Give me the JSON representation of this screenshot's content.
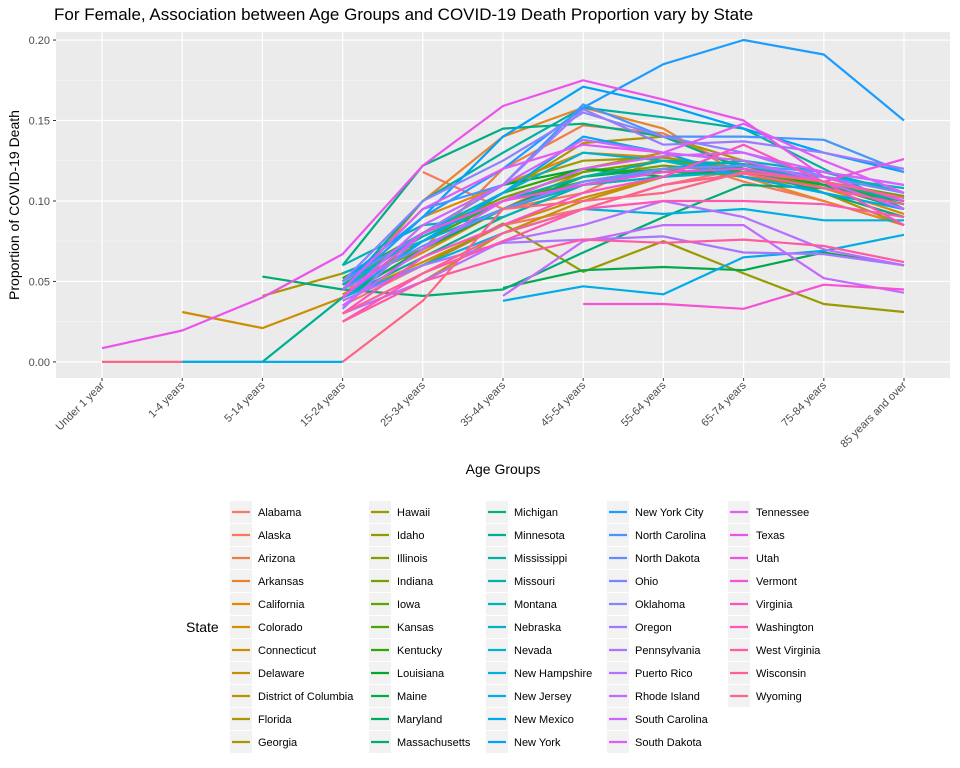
{
  "chart_data": {
    "type": "line",
    "title": "For Female, Association between Age Groups and COVID-19 Death Proportion vary by State",
    "xlabel": "Age Groups",
    "ylabel": "Proportion of COVID-19 Death",
    "categories": [
      "Under 1 year",
      "1-4 years",
      "5-14 years",
      "15-24 years",
      "25-34 years",
      "35-44 years",
      "45-54 years",
      "55-64 years",
      "65-74 years",
      "75-84 years",
      "85 years and over"
    ],
    "ylim": [
      -0.01,
      0.205
    ],
    "yticks": [
      0.0,
      0.05,
      0.1,
      0.15,
      0.2
    ],
    "ytick_labels": [
      "0.00",
      "0.05",
      "0.10",
      "0.15",
      "0.20"
    ],
    "grid": true,
    "legend": {
      "title": "State",
      "position": "bottom"
    },
    "series": [
      {
        "name": "Alabama",
        "color": "#F8766D",
        "values": [
          null,
          null,
          null,
          0.035,
          0.06,
          0.085,
          0.095,
          0.11,
          0.12,
          0.11,
          0.095
        ]
      },
      {
        "name": "Alaska",
        "color": "#F47A5B",
        "values": [
          null,
          null,
          null,
          null,
          0.118,
          0.095,
          0.105,
          0.128,
          0.112,
          0.1,
          0.085
        ]
      },
      {
        "name": "Arizona",
        "color": "#EE7F44",
        "values": [
          null,
          null,
          null,
          0.04,
          0.07,
          0.12,
          0.147,
          0.142,
          0.12,
          0.105,
          0.09
        ]
      },
      {
        "name": "Arkansas",
        "color": "#E8842C",
        "values": [
          null,
          null,
          null,
          0.04,
          0.1,
          0.14,
          0.158,
          0.145,
          0.115,
          0.1,
          0.085
        ]
      },
      {
        "name": "California",
        "color": "#E18A00",
        "values": [
          null,
          null,
          null,
          0.045,
          0.09,
          0.11,
          0.13,
          0.127,
          0.12,
          0.108,
          0.092
        ]
      },
      {
        "name": "Colorado",
        "color": "#D78F00",
        "values": [
          null,
          null,
          null,
          0.042,
          0.068,
          0.095,
          0.118,
          0.125,
          0.115,
          0.11,
          0.1
        ]
      },
      {
        "name": "Connecticut",
        "color": "#CC8E00",
        "values": [
          null,
          0.031,
          0.021,
          0.04,
          0.062,
          0.085,
          0.102,
          0.115,
          0.12,
          0.11,
          0.1
        ]
      },
      {
        "name": "Delaware",
        "color": "#C29000",
        "values": [
          null,
          null,
          null,
          null,
          0.05,
          0.08,
          0.1,
          0.115,
          0.12,
          0.112,
          0.102
        ]
      },
      {
        "name": "District of Columbia",
        "color": "#B69300",
        "values": [
          null,
          null,
          null,
          0.045,
          0.08,
          0.1,
          0.12,
          0.13,
          0.125,
          0.11,
          0.095
        ]
      },
      {
        "name": "Florida",
        "color": "#AB9600",
        "values": [
          null,
          null,
          0.041,
          0.055,
          0.075,
          0.105,
          0.136,
          0.14,
          0.125,
          0.105,
          0.085
        ]
      },
      {
        "name": "Georgia",
        "color": "#A39800",
        "values": [
          null,
          null,
          null,
          0.048,
          0.08,
          0.11,
          0.125,
          0.127,
          0.12,
          0.11,
          0.095
        ]
      },
      {
        "name": "Hawaii",
        "color": "#999900",
        "values": [
          null,
          null,
          null,
          null,
          0.06,
          0.086,
          0.056,
          0.075,
          0.055,
          0.036,
          0.031
        ]
      },
      {
        "name": "Idaho",
        "color": "#8E9B00",
        "values": [
          null,
          null,
          null,
          0.04,
          0.07,
          0.095,
          0.11,
          0.12,
          0.115,
          0.108,
          0.098
        ]
      },
      {
        "name": "Illinois",
        "color": "#819D00",
        "values": [
          null,
          null,
          null,
          0.045,
          0.075,
          0.1,
          0.115,
          0.122,
          0.118,
          0.11,
          0.1
        ]
      },
      {
        "name": "Indiana",
        "color": "#74A000",
        "values": [
          null,
          null,
          null,
          0.05,
          0.08,
          0.102,
          0.118,
          0.125,
          0.12,
          0.112,
          0.102
        ]
      },
      {
        "name": "Iowa",
        "color": "#62A300",
        "values": [
          null,
          null,
          null,
          0.048,
          0.07,
          0.095,
          0.11,
          0.118,
          0.12,
          0.112,
          0.103
        ]
      },
      {
        "name": "Kansas",
        "color": "#4DA500",
        "values": [
          null,
          null,
          null,
          0.055,
          0.075,
          0.1,
          0.112,
          0.12,
          0.122,
          0.11,
          0.1
        ]
      },
      {
        "name": "Kentucky",
        "color": "#2EA700",
        "values": [
          null,
          null,
          null,
          0.052,
          0.08,
          0.105,
          0.12,
          0.118,
          0.118,
          0.108,
          0.098
        ]
      },
      {
        "name": "Louisiana",
        "color": "#00A82C",
        "values": [
          null,
          null,
          null,
          0.05,
          0.08,
          0.11,
          0.12,
          0.115,
          0.12,
          0.11,
          0.098
        ]
      },
      {
        "name": "Maine",
        "color": "#00AA4B",
        "values": [
          null,
          null,
          null,
          null,
          null,
          0.046,
          0.057,
          0.059,
          0.057,
          0.068,
          0.06
        ]
      },
      {
        "name": "Maryland",
        "color": "#00AB60",
        "values": [
          null,
          null,
          null,
          0.04,
          0.07,
          0.095,
          0.115,
          0.12,
          0.125,
          0.11,
          0.095
        ]
      },
      {
        "name": "Massachusetts",
        "color": "#00AC73",
        "values": [
          null,
          null,
          0.053,
          0.045,
          0.041,
          0.045,
          0.068,
          0.09,
          0.11,
          0.108,
          0.1
        ]
      },
      {
        "name": "Michigan",
        "color": "#00AE82",
        "values": [
          null,
          null,
          null,
          0.06,
          0.122,
          0.145,
          0.148,
          0.14,
          0.12,
          0.105,
          0.09
        ]
      },
      {
        "name": "Minnesota",
        "color": "#00AF91",
        "values": [
          null,
          0.0,
          0.0,
          0.04,
          0.065,
          0.09,
          0.11,
          0.115,
          0.122,
          0.112,
          0.102
        ]
      },
      {
        "name": "Mississippi",
        "color": "#00B09E",
        "values": [
          null,
          null,
          null,
          0.045,
          0.1,
          0.13,
          0.158,
          0.152,
          0.145,
          0.12,
          0.095
        ]
      },
      {
        "name": "Missouri",
        "color": "#00B1AB",
        "values": [
          null,
          null,
          null,
          0.048,
          0.078,
          0.1,
          0.115,
          0.125,
          0.123,
          0.112,
          0.1
        ]
      },
      {
        "name": "Montana",
        "color": "#00B2B8",
        "values": [
          null,
          null,
          null,
          0.06,
          0.085,
          0.09,
          0.11,
          0.12,
          0.125,
          0.118,
          0.105
        ]
      },
      {
        "name": "Nebraska",
        "color": "#00B3C5",
        "values": [
          null,
          null,
          null,
          0.055,
          0.075,
          0.095,
          0.11,
          0.115,
          0.118,
          0.115,
          0.108
        ]
      },
      {
        "name": "Nevada",
        "color": "#00B2D1",
        "values": [
          null,
          null,
          null,
          0.045,
          0.08,
          0.105,
          0.13,
          0.125,
          0.115,
          0.105,
          0.095
        ]
      },
      {
        "name": "New Hampshire",
        "color": "#00B0DD",
        "values": [
          null,
          null,
          null,
          0.04,
          0.06,
          0.08,
          0.095,
          0.092,
          0.095,
          0.088,
          0.088
        ]
      },
      {
        "name": "New Jersey",
        "color": "#00ACE8",
        "values": [
          null,
          0.0,
          0.0,
          0.0,
          null,
          0.038,
          0.047,
          0.042,
          0.065,
          0.069,
          0.079
        ]
      },
      {
        "name": "New Mexico",
        "color": "#00A8F2",
        "values": [
          null,
          null,
          null,
          0.04,
          0.075,
          0.105,
          0.14,
          0.13,
          0.115,
          0.105,
          0.095
        ]
      },
      {
        "name": "New York",
        "color": "#00A1FA",
        "values": [
          null,
          null,
          null,
          0.05,
          0.09,
          0.14,
          0.171,
          0.16,
          0.145,
          0.13,
          0.118
        ]
      },
      {
        "name": "New York City",
        "color": "#1C9CFF",
        "values": [
          null,
          null,
          null,
          0.045,
          0.09,
          0.12,
          0.158,
          0.185,
          0.2,
          0.191,
          0.15
        ]
      },
      {
        "name": "North Carolina",
        "color": "#4595FF",
        "values": [
          null,
          null,
          null,
          0.045,
          0.095,
          0.11,
          0.16,
          0.14,
          0.14,
          0.138,
          0.118
        ]
      },
      {
        "name": "North Dakota",
        "color": "#618EFF",
        "values": [
          null,
          null,
          null,
          0.05,
          0.08,
          0.1,
          0.11,
          0.12,
          0.122,
          0.118,
          0.11
        ]
      },
      {
        "name": "Ohio",
        "color": "#7788FF",
        "values": [
          null,
          null,
          null,
          0.045,
          0.072,
          0.095,
          0.112,
          0.12,
          0.122,
          0.115,
          0.105
        ]
      },
      {
        "name": "Oklahoma",
        "color": "#8A82FF",
        "values": [
          null,
          null,
          null,
          0.05,
          0.1,
          0.125,
          0.155,
          0.14,
          0.13,
          0.115,
          0.1
        ]
      },
      {
        "name": "Oregon",
        "color": "#9A7BFF",
        "values": [
          null,
          null,
          null,
          0.033,
          0.08,
          0.11,
          0.157,
          0.135,
          0.137,
          0.13,
          0.12
        ]
      },
      {
        "name": "Pennsylvania",
        "color": "#A975FF",
        "values": [
          null,
          null,
          null,
          0.038,
          0.06,
          0.074,
          0.076,
          0.078,
          0.068,
          0.067,
          0.06
        ]
      },
      {
        "name": "Puerto Rico",
        "color": "#B66FFF",
        "values": [
          null,
          null,
          null,
          0.03,
          0.05,
          0.075,
          0.085,
          0.1,
          0.09,
          0.07,
          0.06
        ]
      },
      {
        "name": "Rhode Island",
        "color": "#C26AFF",
        "values": [
          null,
          null,
          null,
          null,
          null,
          0.041,
          0.075,
          0.085,
          0.085,
          0.052,
          0.043
        ]
      },
      {
        "name": "South Carolina",
        "color": "#CE64FF",
        "values": [
          null,
          null,
          null,
          0.04,
          0.085,
          0.11,
          0.138,
          0.13,
          0.125,
          0.112,
          0.095
        ]
      },
      {
        "name": "South Dakota",
        "color": "#D95FFF",
        "values": [
          null,
          null,
          null,
          0.035,
          0.07,
          0.1,
          0.12,
          0.128,
          0.13,
          0.118,
          0.11
        ]
      },
      {
        "name": "Tennessee",
        "color": "#E25AF7",
        "values": [
          null,
          null,
          null,
          0.045,
          0.095,
          0.12,
          0.135,
          0.13,
          0.148,
          0.125,
          0.105
        ]
      },
      {
        "name": "Texas",
        "color": "#EA54EC",
        "values": [
          0.0085,
          0.0195,
          0.04,
          0.067,
          0.122,
          0.159,
          0.175,
          0.163,
          0.15,
          0.115,
          0.1
        ]
      },
      {
        "name": "Utah",
        "color": "#F053DF",
        "values": [
          null,
          null,
          null,
          0.04,
          0.08,
          0.1,
          0.11,
          0.118,
          0.12,
          0.112,
          0.126
        ]
      },
      {
        "name": "Vermont",
        "color": "#F652D2",
        "values": [
          null,
          null,
          null,
          null,
          null,
          null,
          0.036,
          0.036,
          0.033,
          0.048,
          0.045
        ]
      },
      {
        "name": "Virginia",
        "color": "#FA53C3",
        "values": [
          null,
          null,
          null,
          0.03,
          0.065,
          0.085,
          0.105,
          0.115,
          0.135,
          0.112,
          0.085
        ]
      },
      {
        "name": "Washington",
        "color": "#FD56B3",
        "values": [
          null,
          null,
          null,
          0.025,
          0.055,
          0.075,
          0.095,
          0.1,
          0.1,
          0.098,
          0.09
        ]
      },
      {
        "name": "West Virginia",
        "color": "#FF5AA3",
        "values": [
          null,
          null,
          null,
          0.025,
          0.05,
          0.065,
          0.076,
          0.074,
          0.076,
          0.072,
          0.062
        ]
      },
      {
        "name": "Wisconsin",
        "color": "#FF5F93",
        "values": [
          null,
          null,
          null,
          0.03,
          0.055,
          0.08,
          0.095,
          0.11,
          0.117,
          0.108,
          0.098
        ]
      },
      {
        "name": "Wyoming",
        "color": "#FC6583",
        "values": [
          0.0,
          0.0,
          null,
          0.0,
          0.038,
          0.095,
          0.1,
          0.105,
          0.118,
          0.112,
          0.102
        ]
      }
    ]
  }
}
